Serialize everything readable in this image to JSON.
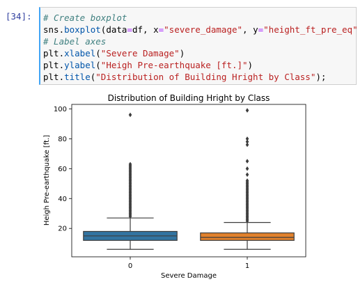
{
  "cell": {
    "prompt": "[34]:",
    "lines": [
      {
        "parts": [
          {
            "t": "# Create boxplot",
            "c": "cm"
          }
        ]
      },
      {
        "parts": [
          {
            "t": "sns"
          },
          {
            "t": "."
          },
          {
            "t": "boxplot",
            "c": "fn"
          },
          {
            "t": "(data"
          },
          {
            "t": "=",
            "c": "op"
          },
          {
            "t": "df, x"
          },
          {
            "t": "=",
            "c": "op"
          },
          {
            "t": "\"severe_damage\"",
            "c": "st"
          },
          {
            "t": ", y"
          },
          {
            "t": "=",
            "c": "op"
          },
          {
            "t": "\"height_ft_pre_eq\"",
            "c": "st"
          },
          {
            "t": ")"
          }
        ]
      },
      {
        "parts": [
          {
            "t": "# Label axes",
            "c": "cm"
          }
        ]
      },
      {
        "parts": [
          {
            "t": "plt"
          },
          {
            "t": "."
          },
          {
            "t": "xlabel",
            "c": "fn"
          },
          {
            "t": "("
          },
          {
            "t": "\"Severe Damage\"",
            "c": "st"
          },
          {
            "t": ")"
          }
        ]
      },
      {
        "parts": [
          {
            "t": "plt"
          },
          {
            "t": "."
          },
          {
            "t": "ylabel",
            "c": "fn"
          },
          {
            "t": "("
          },
          {
            "t": "\"Heigh Pre-earthquake [ft.]\"",
            "c": "st"
          },
          {
            "t": ")"
          }
        ]
      },
      {
        "parts": [
          {
            "t": "plt"
          },
          {
            "t": "."
          },
          {
            "t": "title",
            "c": "fn"
          },
          {
            "t": "("
          },
          {
            "t": "\"Distribution of Building Hright by Class\"",
            "c": "st"
          },
          {
            "t": ");"
          }
        ]
      }
    ]
  },
  "chart_data": {
    "type": "box",
    "title": "Distribution of Building Hright by Class",
    "xlabel": "Severe Damage",
    "ylabel": "Heigh Pre-earthquake [ft.]",
    "categories": [
      "0",
      "1"
    ],
    "yticks": [
      20,
      40,
      60,
      80,
      100
    ],
    "ylim": [
      1,
      103
    ],
    "grid": false,
    "legend": "none",
    "colors": [
      "#3274a1",
      "#e1812c"
    ],
    "boxes": [
      {
        "category": "0",
        "whisker_low": 6,
        "q1": 12,
        "median": 15,
        "q3": 18,
        "whisker_high": 27,
        "outliers": [
          28,
          29,
          30,
          31,
          32,
          33,
          34,
          35,
          36,
          37,
          38,
          39,
          40,
          41,
          42,
          43,
          44,
          45,
          46,
          47,
          48,
          49,
          50,
          51,
          52,
          53,
          54,
          55,
          56,
          57,
          58,
          59,
          60,
          61,
          62,
          63,
          96
        ]
      },
      {
        "category": "1",
        "whisker_low": 6,
        "q1": 12,
        "median": 14,
        "q3": 17,
        "whisker_high": 24,
        "outliers": [
          25,
          26,
          27,
          28,
          29,
          30,
          31,
          32,
          33,
          34,
          35,
          36,
          37,
          38,
          39,
          40,
          41,
          42,
          43,
          44,
          45,
          46,
          47,
          48,
          49,
          50,
          51,
          52,
          56,
          60,
          65,
          76,
          78,
          80,
          99
        ]
      }
    ]
  }
}
